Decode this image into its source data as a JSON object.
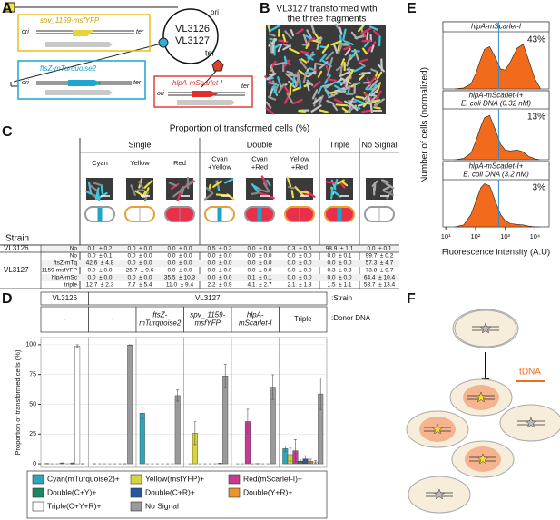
{
  "panels": [
    "A",
    "B",
    "C",
    "D",
    "E",
    "F"
  ],
  "panel_a": {
    "plasmid_ori": "ori",
    "plasmid_ter": "ter",
    "plasmids": [
      "VL3126",
      "VL3127"
    ],
    "box_ori": "ori",
    "box_ter": "ter",
    "constructs": [
      "spv_1159-msfYFP",
      "ftsZ-mTurquoise2",
      "hlpA-mScarlet-I"
    ]
  },
  "panel_b": {
    "title": [
      "VL3127 transformed with",
      "the three fragments"
    ]
  },
  "panel_c": {
    "title": "Proportion of transformed cells (%)",
    "groups": [
      {
        "name": "Single",
        "columns": [
          [
            "Cyan"
          ],
          [
            "Yellow"
          ],
          [
            "Red"
          ]
        ]
      },
      {
        "name": "Double",
        "columns": [
          [
            "Cyan",
            "+Yellow"
          ],
          [
            "Cyan",
            "+Red"
          ],
          [
            "Yellow",
            "+Red"
          ]
        ]
      },
      {
        "name": "Triple"
      },
      {
        "name": "No Signal"
      }
    ],
    "strain_header": "Strain",
    "rows": [
      {
        "strain": "VL3126",
        "donor": "No",
        "cells": [
          "0.1  ± 0.2",
          "0.0  ± 0.0",
          "0.0  ± 0.0",
          "0.5  ± 0.3",
          "0.0  ± 0.0",
          "0.3  ± 0.5",
          "98.9  ± 1.1",
          "0.0  ± 0.1"
        ]
      },
      {
        "strain": "VL3127",
        "donor": "No",
        "cells": [
          "0.0  ± 0.1",
          "0.0  ± 0.0",
          "0.0  ± 0.0",
          "0.0  ± 0.0",
          "0.0  ± 0.0",
          "0.0  ± 0.0",
          "0.0  ± 0.1",
          "99.7  ± 0.2"
        ]
      },
      {
        "donor": "ftsZ-mTq",
        "cells": [
          "42.6  ± 4.8",
          "0.0  ± 0.0",
          "0.0  ± 0.0",
          "0.0  ± 0.0",
          "0.0  ± 0.0",
          "0.0  ± 0.0",
          "0.0  ± 0.0",
          "57.3  ± 4.7"
        ]
      },
      {
        "donor": "1159-msfYFP",
        "cells": [
          "0.0  ± 0.0",
          "25.7  ± 9.6",
          "0.0  ± 0.0",
          "0.0  ± 0.0",
          "0.0  ± 0.0",
          "0.0  ± 0.0",
          "0.3  ± 0.3",
          "73.8  ± 9.7"
        ]
      },
      {
        "donor": "hlpA-mSc",
        "cells": [
          "0.0  ± 0.0",
          "0.0  ± 0.0",
          "35.5  ± 10.3",
          "0.0  ± 0.0",
          "0.1  ± 0.1",
          "0.0  ± 0.0",
          "0.0  ± 0.0",
          "64.4  ± 10.4"
        ]
      },
      {
        "donor": "triple",
        "cells": [
          "12.7  ± 2.3",
          "7.7  ± 5.4",
          "11.0  ± 9.4",
          "2.2  ± 0.9",
          "4.1  ± 2.7",
          "2.1  ± 1.8",
          "1.5  ± 1.1",
          "58.7  ± 13.4"
        ]
      }
    ]
  },
  "panel_e": {
    "ylabel": "Number of cells (normalized)",
    "xlabel": "Fluorescence intensity (A.U)"
  },
  "panel_f": {
    "label": "tDNA"
  },
  "chart_data": [
    {
      "type": "bar",
      "ylabel": "Proportion of transformed cells (%)",
      "strain_label": ":Strain",
      "donor_label": ":Donor DNA",
      "strains": [
        {
          "name": "VL3126",
          "groups": 1
        },
        {
          "name": "VL3127",
          "groups": 5
        }
      ],
      "categories": [
        [
          "-"
        ],
        [
          "-"
        ],
        [
          "ftsZ-",
          "mTurquoise2"
        ],
        [
          "spv_ 1159-",
          "msfYFP"
        ],
        [
          "hlpA-",
          "mScarlet-I"
        ],
        [
          "Triple"
        ]
      ],
      "series": [
        {
          "name": "Cyan(mTurquoise2)+",
          "color": "#2ba6bb",
          "values": [
            0.1,
            0.0,
            42.6,
            0.0,
            0.0,
            12.7
          ],
          "errors": [
            0.2,
            0.1,
            4.8,
            0.0,
            0.0,
            2.3
          ]
        },
        {
          "name": "Yellow(msfYFP)+",
          "color": "#d7d43c",
          "values": [
            0.0,
            0.0,
            0.0,
            25.7,
            0.0,
            7.7
          ],
          "errors": [
            0.0,
            0.0,
            0.0,
            9.6,
            0.0,
            5.4
          ]
        },
        {
          "name": "Red(mScarlet-I)+",
          "color": "#c93a96",
          "values": [
            0.0,
            0.0,
            0.0,
            0.0,
            35.5,
            11.0
          ],
          "errors": [
            0.0,
            0.0,
            0.0,
            0.0,
            10.3,
            9.4
          ]
        },
        {
          "name": "Double(C+Y)+",
          "color": "#178a5c",
          "values": [
            0.5,
            0.0,
            0.0,
            0.0,
            0.0,
            2.2
          ],
          "errors": [
            0.3,
            0.0,
            0.0,
            0.0,
            0.0,
            0.9
          ]
        },
        {
          "name": "Double(C+R)+",
          "color": "#2456a8",
          "values": [
            0.0,
            0.0,
            0.0,
            0.0,
            0.1,
            4.1
          ],
          "errors": [
            0.0,
            0.0,
            0.0,
            0.0,
            0.1,
            2.7
          ]
        },
        {
          "name": "Double(Y+R)+",
          "color": "#e9952c",
          "values": [
            0.3,
            0.0,
            0.0,
            0.0,
            0.0,
            2.1
          ],
          "errors": [
            0.5,
            0.0,
            0.0,
            0.0,
            0.0,
            1.8
          ]
        },
        {
          "name": "Triple(C+Y+R)+",
          "color": "#ffffff",
          "values": [
            98.9,
            0.0,
            0.0,
            0.3,
            0.0,
            1.5
          ],
          "errors": [
            1.1,
            0.1,
            0.0,
            0.3,
            0.0,
            1.1
          ]
        },
        {
          "name": "No Signal",
          "color": "#9a9a9a",
          "values": [
            0.0,
            99.7,
            57.3,
            73.8,
            64.4,
            58.7
          ],
          "errors": [
            0.1,
            0.2,
            4.7,
            9.7,
            10.4,
            13.4
          ]
        }
      ],
      "ylim": [
        -3,
        106
      ],
      "yticks": [
        0,
        25,
        50,
        75,
        100
      ],
      "grid": true
    },
    {
      "type": "area",
      "title": [
        "hlpA-mScarlet-I"
      ],
      "annotation": "43%",
      "color": "#f26b1d",
      "log_x": true,
      "x": [
        20,
        40,
        70,
        100,
        150,
        200,
        300,
        450,
        700,
        1000,
        1500,
        2500,
        4000,
        6000,
        10000,
        15000
      ],
      "values": [
        0,
        0.02,
        0.1,
        0.3,
        0.6,
        0.8,
        0.85,
        0.65,
        0.4,
        0.38,
        0.55,
        0.82,
        0.9,
        0.6,
        0.2,
        0.02
      ],
      "threshold": 600,
      "xlim": [
        8,
        30000
      ],
      "ylim": [
        0,
        1.15
      ]
    },
    {
      "type": "area",
      "title": [
        "hlpA-mScarlet-I+",
        "E. coli DNA (0.32 nM)"
      ],
      "annotation": "13%",
      "color": "#f26b1d",
      "log_x": true,
      "x": [
        20,
        40,
        70,
        100,
        150,
        200,
        300,
        450,
        700,
        1000,
        1500,
        2500,
        4000,
        6000,
        10000,
        15000
      ],
      "values": [
        0,
        0.03,
        0.15,
        0.4,
        0.75,
        0.95,
        1.0,
        0.7,
        0.35,
        0.22,
        0.2,
        0.22,
        0.18,
        0.08,
        0.02,
        0
      ],
      "threshold": 600,
      "xlim": [
        8,
        30000
      ],
      "ylim": [
        0,
        1.15
      ]
    },
    {
      "type": "area",
      "title": [
        "hlpA-mScarlet-I+",
        "E. coli DNA (3.2 nM)"
      ],
      "annotation": "3%",
      "color": "#f26b1d",
      "log_x": true,
      "x": [
        20,
        40,
        70,
        100,
        150,
        200,
        300,
        450,
        700,
        1000,
        1500,
        2500,
        4000,
        6000,
        10000,
        15000
      ],
      "values": [
        0,
        0.05,
        0.3,
        0.6,
        0.95,
        1.05,
        1.0,
        0.65,
        0.3,
        0.15,
        0.08,
        0.06,
        0.05,
        0.02,
        0,
        0
      ],
      "threshold": 600,
      "xlim": [
        8,
        30000
      ],
      "ylim": [
        0,
        1.15
      ],
      "xticks": [
        {
          "value": 10,
          "label": "10¹"
        },
        {
          "value": 100,
          "label": "10²"
        },
        {
          "value": 1000,
          "label": "10³"
        },
        {
          "value": 10000,
          "label": "10⁴"
        }
      ]
    }
  ]
}
